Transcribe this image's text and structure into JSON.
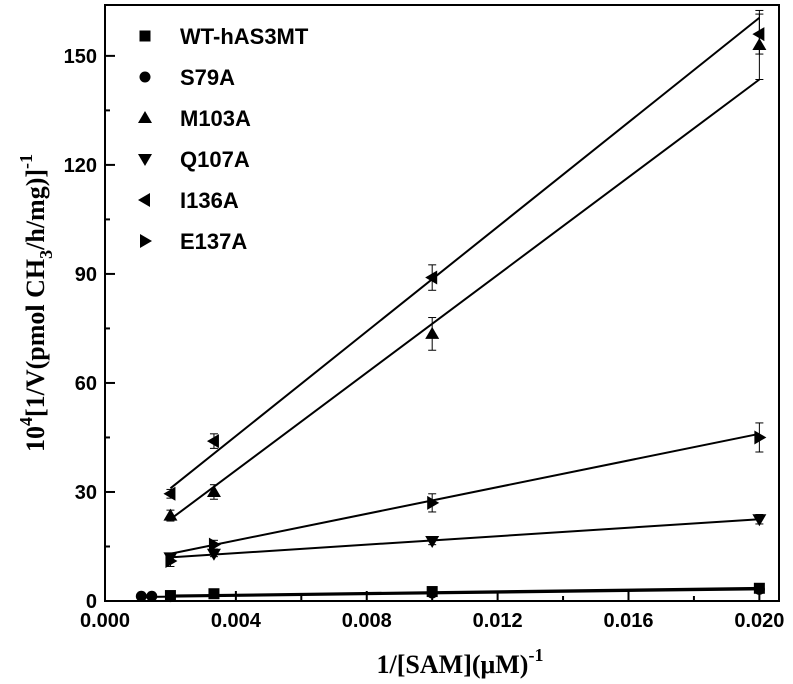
{
  "chart_data": {
    "type": "scatter",
    "title": "",
    "xlabel": {
      "main": "1/[SAM](μM)",
      "sup": "-1"
    },
    "ylabel": {
      "pre": "10",
      "pre_sup": "4",
      "main": "[1/V(pmol CH",
      "sub": "3",
      "post": "/h/mg)]",
      "post_sup": "-1"
    },
    "xlim": [
      0.0,
      0.0206
    ],
    "ylim": [
      0,
      164
    ],
    "x_ticks": [
      0.0,
      0.004,
      0.008,
      0.012,
      0.016,
      0.02
    ],
    "x_tick_labels": [
      "0.000",
      "0.004",
      "0.008",
      "0.012",
      "0.016",
      "0.020"
    ],
    "y_ticks": [
      0,
      30,
      60,
      90,
      120,
      150
    ],
    "y_tick_labels": [
      "0",
      "30",
      "60",
      "90",
      "120",
      "150"
    ],
    "grid": false,
    "legend_position": "top-left",
    "series": [
      {
        "name": "WT-hAS3MT",
        "marker": "square",
        "points": [
          [
            0.002,
            1.5
          ],
          [
            0.00333,
            2.0
          ],
          [
            0.01,
            2.6
          ],
          [
            0.02,
            3.5
          ]
        ],
        "errors": [
          0.3,
          0.4,
          0.6,
          0.8
        ],
        "fit": [
          [
            0.002,
            1.5
          ],
          [
            0.02,
            3.6
          ]
        ]
      },
      {
        "name": "S79A",
        "marker": "circle",
        "points": [
          [
            0.00111,
            1.3
          ],
          [
            0.00143,
            1.3
          ],
          [
            0.002,
            1.2
          ],
          [
            0.01,
            2.2
          ],
          [
            0.02,
            3.2
          ]
        ],
        "errors": [
          0.2,
          0.2,
          0.2,
          0.4,
          0.6
        ],
        "fit": [
          [
            0.00111,
            1.1
          ],
          [
            0.02,
            3.2
          ]
        ]
      },
      {
        "name": "M103A",
        "marker": "triangle-up",
        "points": [
          [
            0.002,
            23.5
          ],
          [
            0.00333,
            30.0
          ],
          [
            0.01,
            73.5
          ],
          [
            0.02,
            153.0
          ]
        ],
        "errors": [
          1.5,
          2.0,
          4.5,
          9.5
        ],
        "fit": [
          [
            0.002,
            22.5
          ],
          [
            0.02,
            143.5
          ]
        ]
      },
      {
        "name": "Q107A",
        "marker": "triangle-down",
        "points": [
          [
            0.002,
            12.0
          ],
          [
            0.00333,
            13.0
          ],
          [
            0.01,
            16.5
          ],
          [
            0.02,
            22.5
          ]
        ],
        "errors": [
          0.8,
          0.8,
          1.0,
          1.3
        ],
        "fit": [
          [
            0.002,
            12.0
          ],
          [
            0.02,
            22.5
          ]
        ]
      },
      {
        "name": "I136A",
        "marker": "triangle-left",
        "points": [
          [
            0.002,
            29.5
          ],
          [
            0.00333,
            44.0
          ],
          [
            0.01,
            89.0
          ],
          [
            0.02,
            156.0
          ]
        ],
        "errors": [
          1.2,
          2.0,
          3.5,
          5.5
        ],
        "fit": [
          [
            0.002,
            31.0
          ],
          [
            0.02,
            160.5
          ]
        ]
      },
      {
        "name": "E137A",
        "marker": "triangle-right",
        "points": [
          [
            0.002,
            11.0
          ],
          [
            0.00333,
            15.5
          ],
          [
            0.01,
            27.0
          ],
          [
            0.02,
            45.0
          ]
        ],
        "errors": [
          1.5,
          1.2,
          2.5,
          4.0
        ],
        "fit": [
          [
            0.002,
            13.0
          ],
          [
            0.02,
            46.0
          ]
        ]
      }
    ]
  }
}
